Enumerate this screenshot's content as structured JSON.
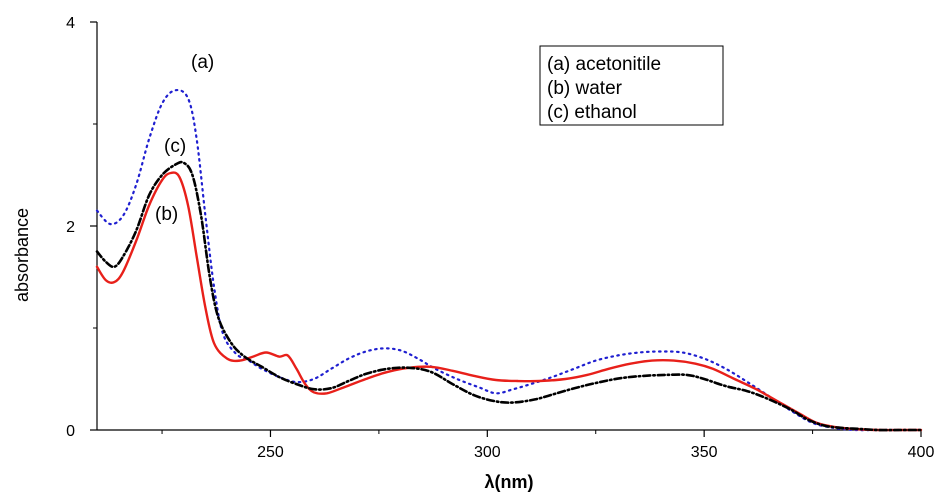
{
  "chart_data": {
    "type": "line",
    "xlabel": "λ(nm)",
    "ylabel": "absorbance",
    "xlim": [
      210,
      400
    ],
    "ylim": [
      0,
      4
    ],
    "x_ticks": [
      250,
      300,
      350,
      400
    ],
    "y_ticks": [
      0,
      2,
      4
    ],
    "grid": false,
    "legend_position": "top-right",
    "legend": [
      "(a) acetonitile",
      "(b) water",
      "(c) ethanol"
    ],
    "curve_labels": [
      "(a)",
      "(c)",
      "(b)"
    ],
    "series": [
      {
        "name": "(a) acetonitile",
        "color": "#1f1fd0",
        "style": "dotted",
        "points": [
          [
            210,
            2.15
          ],
          [
            213,
            2.02
          ],
          [
            216,
            2.1
          ],
          [
            219,
            2.4
          ],
          [
            222,
            2.85
          ],
          [
            225,
            3.2
          ],
          [
            228,
            3.33
          ],
          [
            231,
            3.25
          ],
          [
            233,
            2.85
          ],
          [
            235,
            2.1
          ],
          [
            237,
            1.4
          ],
          [
            239,
            0.95
          ],
          [
            242,
            0.75
          ],
          [
            245,
            0.68
          ],
          [
            248,
            0.6
          ],
          [
            252,
            0.52
          ],
          [
            256,
            0.47
          ],
          [
            260,
            0.5
          ],
          [
            264,
            0.6
          ],
          [
            268,
            0.7
          ],
          [
            272,
            0.77
          ],
          [
            276,
            0.8
          ],
          [
            280,
            0.78
          ],
          [
            284,
            0.7
          ],
          [
            288,
            0.6
          ],
          [
            293,
            0.5
          ],
          [
            298,
            0.42
          ],
          [
            302,
            0.36
          ],
          [
            306,
            0.4
          ],
          [
            310,
            0.45
          ],
          [
            315,
            0.52
          ],
          [
            320,
            0.6
          ],
          [
            325,
            0.68
          ],
          [
            330,
            0.73
          ],
          [
            335,
            0.76
          ],
          [
            340,
            0.77
          ],
          [
            345,
            0.76
          ],
          [
            350,
            0.7
          ],
          [
            355,
            0.6
          ],
          [
            360,
            0.47
          ],
          [
            365,
            0.33
          ],
          [
            370,
            0.19
          ],
          [
            375,
            0.07
          ],
          [
            380,
            0.02
          ],
          [
            385,
            0.0
          ],
          [
            390,
            0.0
          ],
          [
            395,
            0.0
          ],
          [
            400,
            0.0
          ]
        ]
      },
      {
        "name": "(b) water",
        "color": "#e8201a",
        "style": "solid",
        "points": [
          [
            210,
            1.6
          ],
          [
            212,
            1.47
          ],
          [
            214,
            1.45
          ],
          [
            216,
            1.55
          ],
          [
            219,
            1.85
          ],
          [
            222,
            2.2
          ],
          [
            225,
            2.45
          ],
          [
            227,
            2.52
          ],
          [
            229,
            2.48
          ],
          [
            231,
            2.2
          ],
          [
            233,
            1.7
          ],
          [
            235,
            1.2
          ],
          [
            237,
            0.85
          ],
          [
            240,
            0.7
          ],
          [
            243,
            0.68
          ],
          [
            246,
            0.72
          ],
          [
            249,
            0.76
          ],
          [
            252,
            0.72
          ],
          [
            254,
            0.73
          ],
          [
            256,
            0.6
          ],
          [
            258,
            0.45
          ],
          [
            260,
            0.37
          ],
          [
            263,
            0.36
          ],
          [
            267,
            0.42
          ],
          [
            272,
            0.5
          ],
          [
            277,
            0.57
          ],
          [
            282,
            0.61
          ],
          [
            287,
            0.62
          ],
          [
            292,
            0.58
          ],
          [
            297,
            0.53
          ],
          [
            302,
            0.49
          ],
          [
            307,
            0.48
          ],
          [
            312,
            0.48
          ],
          [
            318,
            0.5
          ],
          [
            323,
            0.54
          ],
          [
            328,
            0.6
          ],
          [
            333,
            0.65
          ],
          [
            338,
            0.68
          ],
          [
            343,
            0.68
          ],
          [
            348,
            0.65
          ],
          [
            352,
            0.6
          ],
          [
            357,
            0.5
          ],
          [
            362,
            0.4
          ],
          [
            367,
            0.28
          ],
          [
            372,
            0.16
          ],
          [
            376,
            0.07
          ],
          [
            380,
            0.03
          ],
          [
            385,
            0.01
          ],
          [
            390,
            0.0
          ],
          [
            395,
            0.0
          ],
          [
            400,
            0.0
          ]
        ]
      },
      {
        "name": "(c) ethanol",
        "color": "#000000",
        "style": "dashdot",
        "points": [
          [
            210,
            1.75
          ],
          [
            212,
            1.65
          ],
          [
            214,
            1.6
          ],
          [
            216,
            1.7
          ],
          [
            219,
            1.95
          ],
          [
            222,
            2.3
          ],
          [
            225,
            2.5
          ],
          [
            228,
            2.6
          ],
          [
            230,
            2.62
          ],
          [
            232,
            2.5
          ],
          [
            234,
            2.1
          ],
          [
            236,
            1.5
          ],
          [
            238,
            1.1
          ],
          [
            241,
            0.85
          ],
          [
            244,
            0.72
          ],
          [
            248,
            0.62
          ],
          [
            252,
            0.52
          ],
          [
            256,
            0.45
          ],
          [
            260,
            0.4
          ],
          [
            264,
            0.41
          ],
          [
            268,
            0.48
          ],
          [
            272,
            0.55
          ],
          [
            277,
            0.6
          ],
          [
            282,
            0.61
          ],
          [
            287,
            0.57
          ],
          [
            292,
            0.45
          ],
          [
            297,
            0.34
          ],
          [
            302,
            0.28
          ],
          [
            306,
            0.27
          ],
          [
            311,
            0.3
          ],
          [
            316,
            0.36
          ],
          [
            321,
            0.42
          ],
          [
            326,
            0.47
          ],
          [
            331,
            0.51
          ],
          [
            336,
            0.53
          ],
          [
            341,
            0.54
          ],
          [
            346,
            0.54
          ],
          [
            350,
            0.5
          ],
          [
            355,
            0.43
          ],
          [
            360,
            0.38
          ],
          [
            365,
            0.3
          ],
          [
            370,
            0.2
          ],
          [
            374,
            0.1
          ],
          [
            378,
            0.04
          ],
          [
            382,
            0.02
          ],
          [
            386,
            0.01
          ],
          [
            390,
            0.0
          ],
          [
            395,
            0.0
          ],
          [
            400,
            0.0
          ]
        ]
      }
    ]
  }
}
